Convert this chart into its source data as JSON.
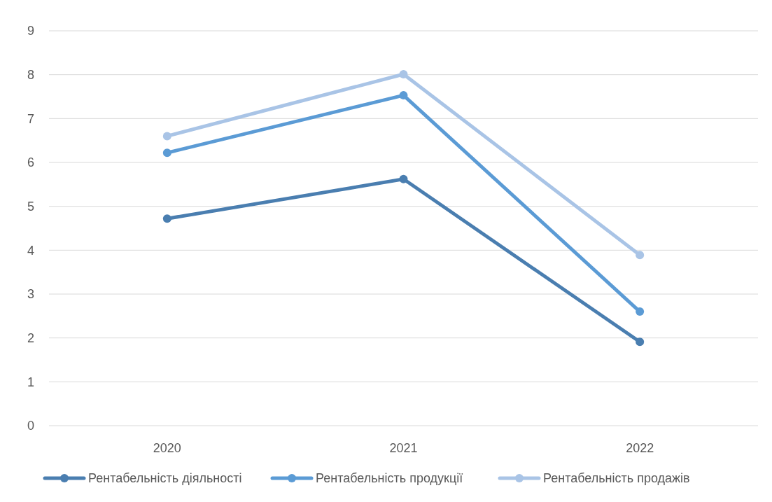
{
  "chart_data": {
    "type": "line",
    "categories": [
      "2020",
      "2021",
      "2022"
    ],
    "series": [
      {
        "name": "Рентабельність діяльності",
        "color": "#4a7eb0",
        "values": [
          4.72,
          5.62,
          1.91
        ]
      },
      {
        "name": "Рентабельність продукції",
        "color": "#5b9bd5",
        "values": [
          6.22,
          7.53,
          2.6
        ]
      },
      {
        "name": "Рентабельність продажів",
        "color": "#a9c4e6",
        "values": [
          6.6,
          8.01,
          3.89
        ]
      }
    ],
    "ylim": [
      0,
      9
    ],
    "yticks": [
      0,
      1,
      2,
      3,
      4,
      5,
      6,
      7,
      8,
      9
    ],
    "grid": "y",
    "legend": "bottom",
    "marker": "circle",
    "line_style": "solid"
  }
}
